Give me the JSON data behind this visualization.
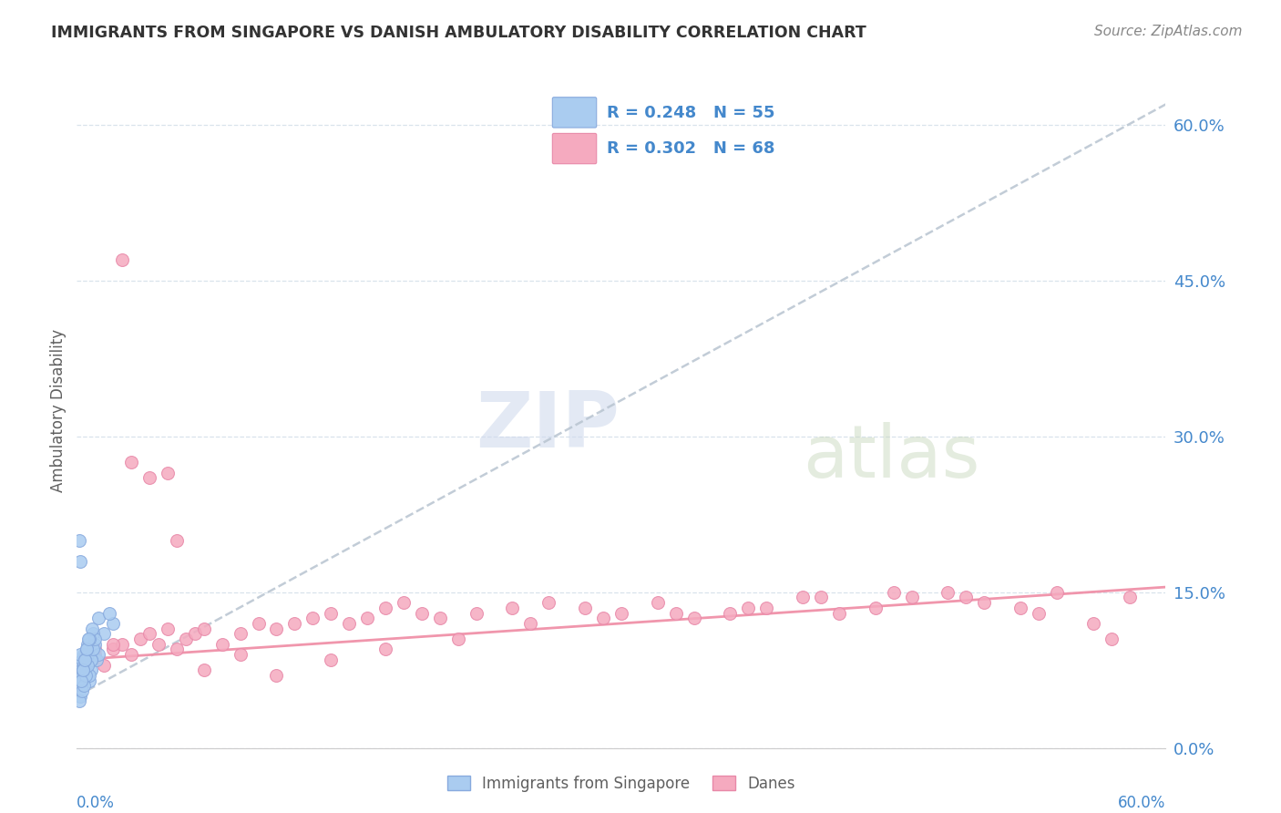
{
  "title": "IMMIGRANTS FROM SINGAPORE VS DANISH AMBULATORY DISABILITY CORRELATION CHART",
  "source_text": "Source: ZipAtlas.com",
  "ylabel": "Ambulatory Disability",
  "yaxis_values": [
    0.0,
    15.0,
    30.0,
    45.0,
    60.0
  ],
  "xlim": [
    0.0,
    60.0
  ],
  "ylim": [
    0.0,
    65.0
  ],
  "legend_r1": "R = 0.248",
  "legend_n1": "N = 55",
  "legend_r2": "R = 0.302",
  "legend_n2": "N = 68",
  "color_singapore": "#aaccf0",
  "color_singapore_edge": "#88aade",
  "color_danes": "#f5aabf",
  "color_danes_edge": "#e888a8",
  "color_trendline_sg": "#b8c8d8",
  "color_trendline_danes": "#f090a8",
  "color_axis_blue": "#4488cc",
  "color_title": "#333333",
  "color_source": "#888888",
  "singapore_x": [
    0.15,
    0.2,
    0.1,
    0.12,
    0.18,
    0.25,
    0.3,
    0.35,
    0.4,
    0.5,
    0.6,
    0.7,
    0.8,
    0.9,
    1.0,
    1.1,
    1.2,
    1.5,
    2.0,
    0.2,
    0.15,
    0.25,
    0.3,
    0.4,
    0.5,
    0.6,
    0.8,
    0.9,
    0.3,
    0.2,
    0.15,
    0.4,
    0.5,
    0.6,
    0.7,
    0.8,
    0.9,
    1.0,
    0.3,
    0.4,
    0.5,
    0.6,
    0.2,
    0.35,
    0.45,
    0.55,
    0.7,
    0.85,
    1.2,
    1.8,
    0.25,
    0.35,
    0.45,
    0.55,
    0.65
  ],
  "singapore_y": [
    6.5,
    7.0,
    5.5,
    8.0,
    6.0,
    7.5,
    8.5,
    6.5,
    9.0,
    7.0,
    8.0,
    6.5,
    7.5,
    9.5,
    10.0,
    8.5,
    9.0,
    11.0,
    12.0,
    18.0,
    20.0,
    6.0,
    7.0,
    8.0,
    9.0,
    10.0,
    8.5,
    11.0,
    6.5,
    5.0,
    4.5,
    7.5,
    8.0,
    9.0,
    7.0,
    8.5,
    9.5,
    10.5,
    5.5,
    6.0,
    7.0,
    8.0,
    9.0,
    7.5,
    8.5,
    9.5,
    10.5,
    11.5,
    12.5,
    13.0,
    6.5,
    7.5,
    8.5,
    9.5,
    10.5
  ],
  "danes_x": [
    0.5,
    1.0,
    1.5,
    2.0,
    2.5,
    3.0,
    3.5,
    4.0,
    4.5,
    5.0,
    5.5,
    6.0,
    6.5,
    7.0,
    8.0,
    9.0,
    10.0,
    11.0,
    12.0,
    13.0,
    14.0,
    15.0,
    16.0,
    17.0,
    18.0,
    19.0,
    20.0,
    22.0,
    24.0,
    26.0,
    28.0,
    30.0,
    32.0,
    34.0,
    36.0,
    38.0,
    40.0,
    42.0,
    44.0,
    46.0,
    48.0,
    50.0,
    52.0,
    54.0,
    56.0,
    58.0,
    1.0,
    2.0,
    3.0,
    4.0,
    5.0,
    7.0,
    9.0,
    11.0,
    14.0,
    17.0,
    21.0,
    25.0,
    29.0,
    33.0,
    37.0,
    41.0,
    45.0,
    49.0,
    53.0,
    57.0,
    2.5,
    5.5
  ],
  "danes_y": [
    8.5,
    9.0,
    8.0,
    9.5,
    10.0,
    9.0,
    10.5,
    11.0,
    10.0,
    11.5,
    9.5,
    10.5,
    11.0,
    11.5,
    10.0,
    11.0,
    12.0,
    11.5,
    12.0,
    12.5,
    13.0,
    12.0,
    12.5,
    13.5,
    14.0,
    13.0,
    12.5,
    13.0,
    13.5,
    14.0,
    13.5,
    13.0,
    14.0,
    12.5,
    13.0,
    13.5,
    14.5,
    13.0,
    13.5,
    14.5,
    15.0,
    14.0,
    13.5,
    15.0,
    12.0,
    14.5,
    9.5,
    10.0,
    27.5,
    26.0,
    26.5,
    7.5,
    9.0,
    7.0,
    8.5,
    9.5,
    10.5,
    12.0,
    12.5,
    13.0,
    13.5,
    14.5,
    15.0,
    14.5,
    13.0,
    10.5,
    47.0,
    20.0
  ]
}
